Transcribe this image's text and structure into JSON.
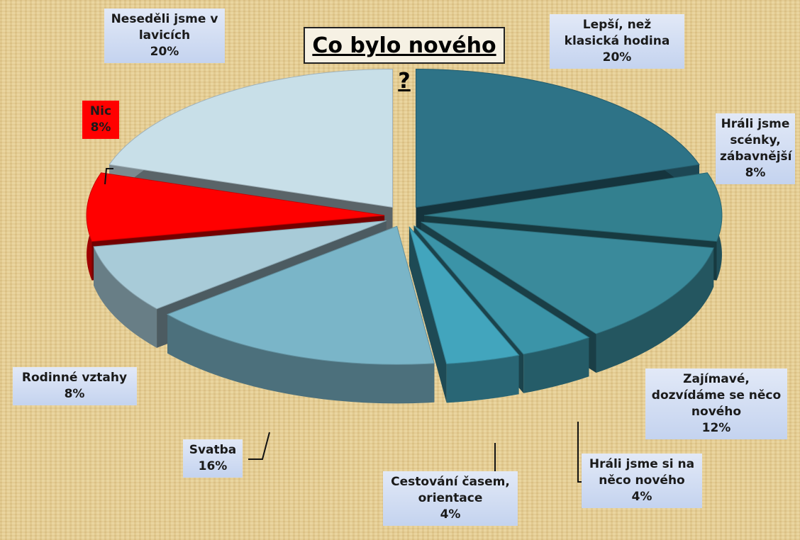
{
  "chart_data": {
    "type": "pie3d",
    "title": "Co bylo nového ?",
    "categories": [
      "Lepší, než klasická hodina",
      "Hráli jsme scénky, zábavnější",
      "Zajímavé, dozvídáme se něco nového",
      "Hráli jsme si na něco nového",
      "Cestování časem, orientace",
      "Svatba",
      "Rodinné vztahy",
      "Nic",
      "Neseděli jsme v lavicích"
    ],
    "values": [
      20,
      8,
      12,
      4,
      4,
      16,
      8,
      8,
      20
    ],
    "value_labels": [
      "20%",
      "8%",
      "12%",
      "4%",
      "4%",
      "16%",
      "8%",
      "8%",
      "20%"
    ],
    "colors": [
      "#2e7387",
      "#33808f",
      "#3a8a9b",
      "#3b94a8",
      "#42a5bd",
      "#7ab5c8",
      "#a8cbd8",
      "#ff0000",
      "#c8dfe8"
    ]
  }
}
